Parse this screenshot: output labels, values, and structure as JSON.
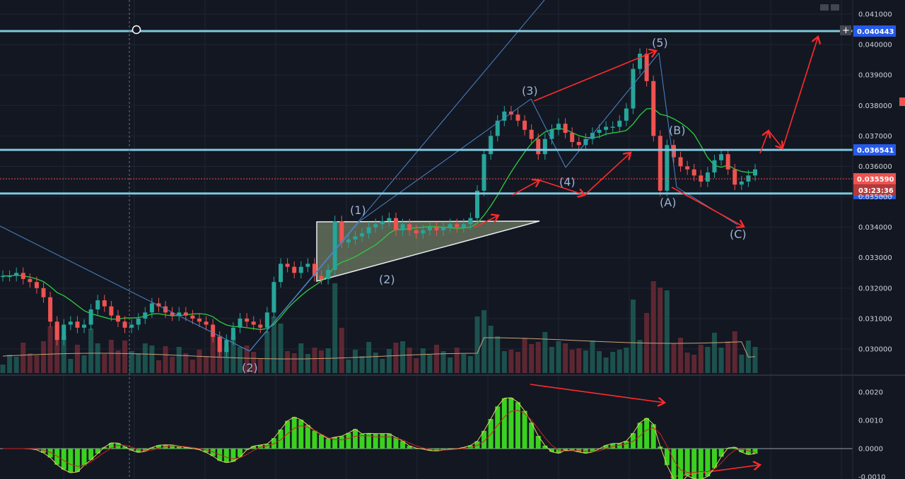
{
  "chart_data": {
    "type": "candlestick",
    "title": "",
    "price_axis_ticks": [
      "0.041000",
      "0.040000",
      "0.039000",
      "0.038000",
      "0.037000",
      "0.036000",
      "0.035000",
      "0.034000",
      "0.033000",
      "0.032000",
      "0.031000",
      "0.030000"
    ],
    "macd_axis_ticks": [
      "0.0020",
      "0.0010",
      "0.0000",
      "-0.0010"
    ],
    "horizontal_levels": [
      {
        "value": "0.040443",
        "color": "#7ec9e0"
      },
      {
        "value": "0.036541",
        "color": "#7ec9e0"
      },
      {
        "value": "0.035109",
        "color": "#7ec9e0"
      }
    ],
    "last_price": {
      "value": "0.035590",
      "countdown": "03:23:36",
      "color": "#ef5350"
    },
    "wave_labels": [
      "(1)",
      "(2)",
      "(2)",
      "(3)",
      "(4)",
      "(5)",
      "(A)",
      "(B)",
      "(C)"
    ],
    "close_series": [
      0.0324,
      0.0324,
      0.0325,
      0.0323,
      0.0322,
      0.032,
      0.0317,
      0.0309,
      0.0303,
      0.0308,
      0.0309,
      0.0307,
      0.0308,
      0.0313,
      0.0316,
      0.0314,
      0.0311,
      0.0309,
      0.0307,
      0.0308,
      0.031,
      0.0312,
      0.0315,
      0.0314,
      0.0312,
      0.0311,
      0.0312,
      0.0311,
      0.031,
      0.0309,
      0.0308,
      0.0304,
      0.0299,
      0.0303,
      0.0307,
      0.031,
      0.0309,
      0.0308,
      0.0307,
      0.0312,
      0.0322,
      0.0328,
      0.0327,
      0.0325,
      0.0327,
      0.0328,
      0.0324,
      0.0323,
      0.0326,
      0.0342,
      0.0335,
      0.0336,
      0.0337,
      0.0338,
      0.034,
      0.0341,
      0.0342,
      0.0343,
      0.0339,
      0.0341,
      0.0339,
      0.0338,
      0.0339,
      0.034,
      0.0339,
      0.034,
      0.0341,
      0.034,
      0.0341,
      0.0343,
      0.0352,
      0.0364,
      0.037,
      0.0375,
      0.0378,
      0.0377,
      0.0375,
      0.0372,
      0.0369,
      0.0364,
      0.0369,
      0.0372,
      0.0374,
      0.0371,
      0.0368,
      0.0367,
      0.0369,
      0.0371,
      0.0372,
      0.0373,
      0.0373,
      0.0375,
      0.0379,
      0.0392,
      0.0397,
      0.0388,
      0.037,
      0.0352,
      0.0367,
      0.0363,
      0.036,
      0.0359,
      0.0357,
      0.0355,
      0.0358,
      0.0362,
      0.0364,
      0.0359,
      0.0354,
      0.0355,
      0.0357,
      0.0359
    ]
  }
}
